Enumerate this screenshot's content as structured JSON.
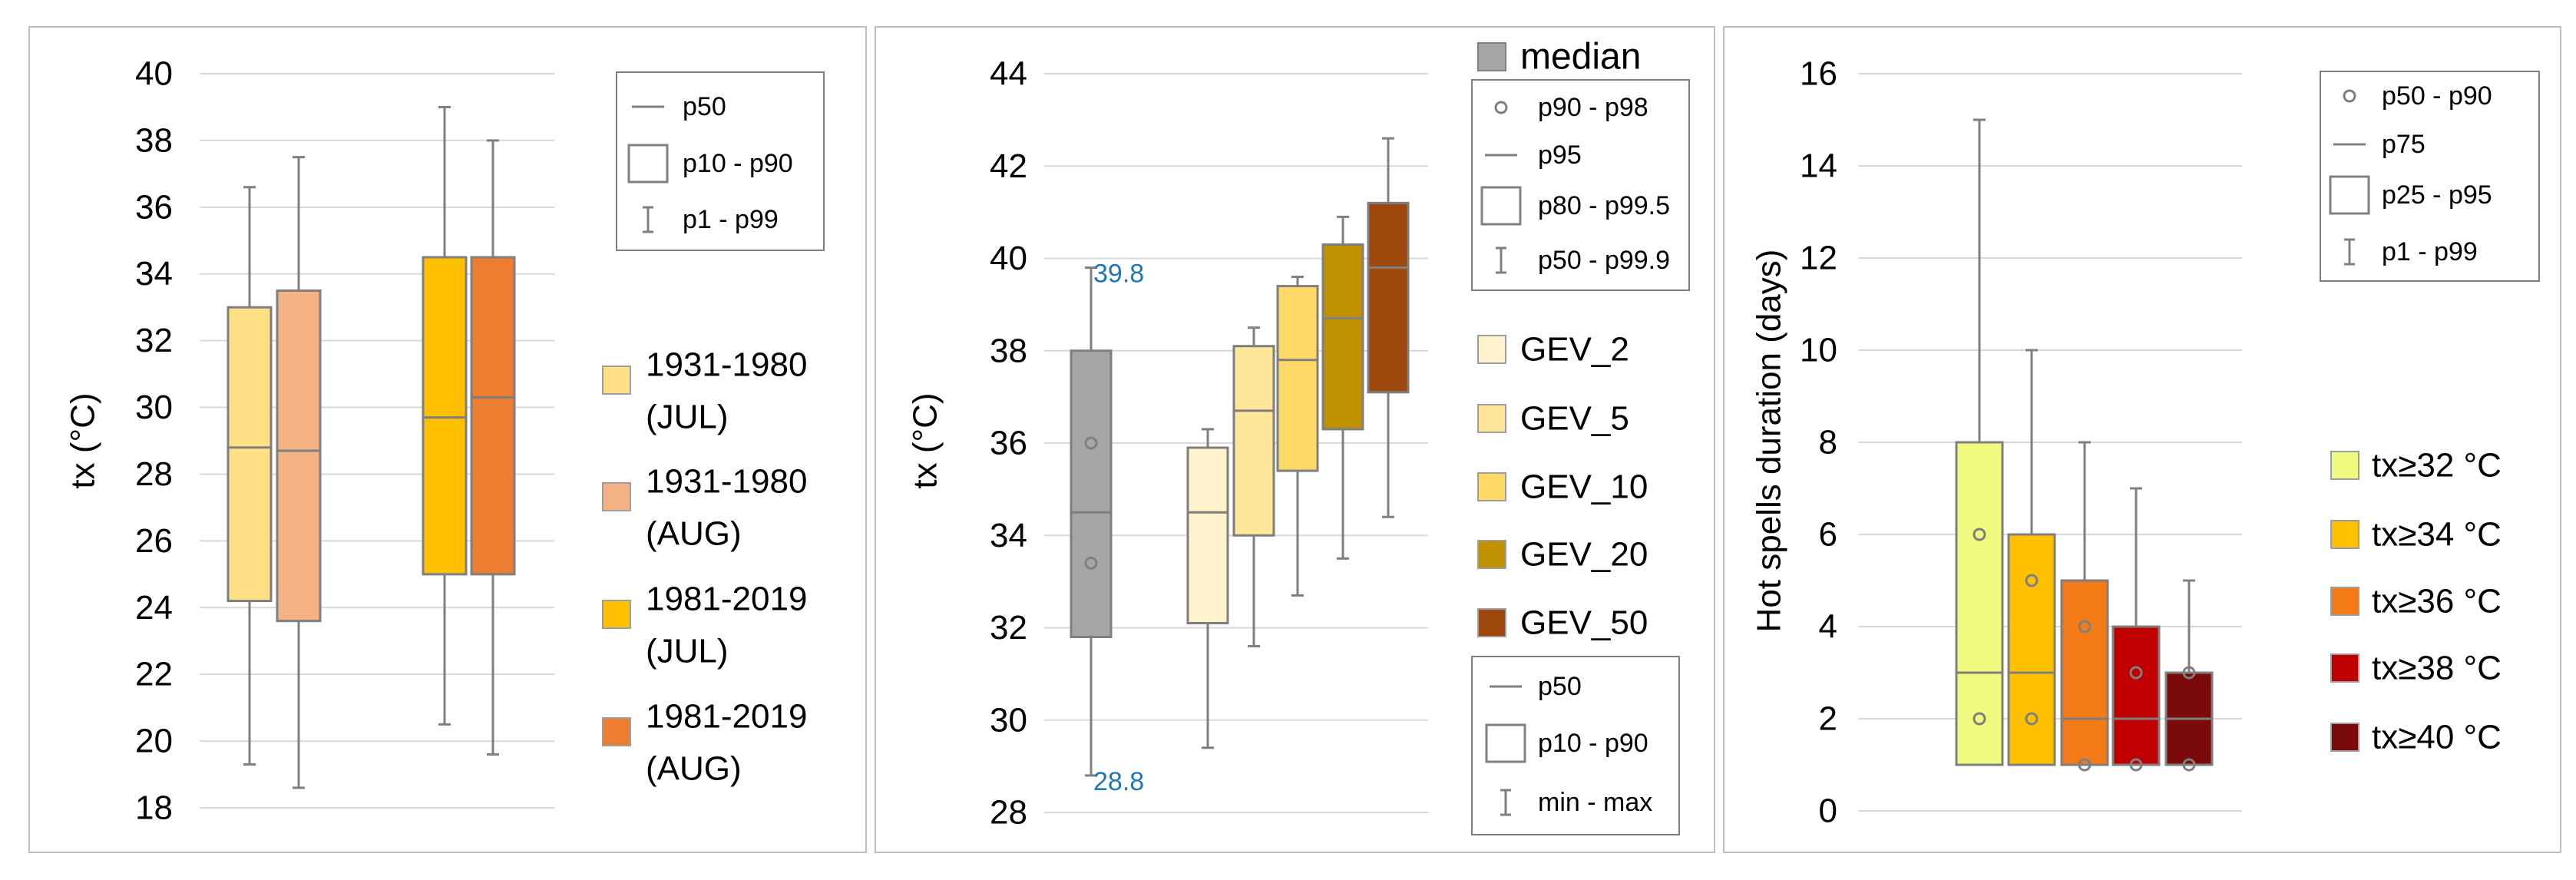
{
  "colors": {
    "axis_text": "#000000",
    "grid": "#d9d9d9",
    "whisker": "#7f7f7f",
    "panel_border": "#bfbfbf",
    "annotation": "#1f77b4"
  },
  "chart_data": [
    {
      "type": "box",
      "panel": 1,
      "ylabel": "tx (°C)",
      "ylim": [
        18,
        40
      ],
      "yticks": [
        18,
        20,
        22,
        24,
        26,
        28,
        30,
        32,
        34,
        36,
        38,
        40
      ],
      "legend_stat": [
        {
          "symbol": "line",
          "label": "p50"
        },
        {
          "symbol": "box",
          "label": "p10 - p90"
        },
        {
          "symbol": "whisker",
          "label": "p1 - p99"
        }
      ],
      "series": [
        {
          "name": "1931-1980 (JUL)",
          "line1": "1931-1980",
          "line2": "(JUL)",
          "color": "#ffe084",
          "p1": 19.3,
          "p10": 24.2,
          "p50": 28.8,
          "p90": 33.0,
          "p99": 36.6
        },
        {
          "name": "1931-1980 (AUG)",
          "line1": "1931-1980",
          "line2": "(AUG)",
          "color": "#f4b183",
          "p1": 18.6,
          "p10": 23.6,
          "p50": 28.7,
          "p90": 33.5,
          "p99": 37.5
        },
        {
          "name": "1981-2019 (JUL)",
          "line1": "1981-2019",
          "line2": "(JUL)",
          "color": "#ffc000",
          "p1": 20.5,
          "p10": 25.0,
          "p50": 29.7,
          "p90": 34.5,
          "p99": 39.0
        },
        {
          "name": "1981-2019 (AUG)",
          "line1": "1981-2019",
          "line2": "(AUG)",
          "color": "#ed7d31",
          "p1": 19.6,
          "p10": 25.0,
          "p50": 30.3,
          "p90": 34.5,
          "p99": 38.0
        }
      ]
    },
    {
      "type": "box",
      "panel": 2,
      "ylabel": "tx  (°C)",
      "ylim": [
        28,
        44
      ],
      "yticks": [
        28,
        30,
        32,
        34,
        36,
        38,
        40,
        42,
        44
      ],
      "median_box": {
        "name": "median",
        "color": "#a6a6a6",
        "min": 28.8,
        "p10": 31.8,
        "p50": 34.5,
        "p90": 38.0,
        "max": 39.8,
        "points": [
          36.0,
          33.4
        ]
      },
      "annotations": {
        "max": "39.8",
        "min": "28.8"
      },
      "legend_median": [
        {
          "symbol": "circle",
          "label": "p90 - p98"
        },
        {
          "symbol": "line",
          "label": "p95"
        },
        {
          "symbol": "box",
          "label": "p80 - p99.5"
        },
        {
          "symbol": "whisker",
          "label": "p50 - p99.9"
        }
      ],
      "legend_series_stat": [
        {
          "symbol": "line",
          "label": "p50"
        },
        {
          "symbol": "box",
          "label": "p10 - p90"
        },
        {
          "symbol": "whisker",
          "label": "min - max"
        }
      ],
      "series": [
        {
          "name": "GEV_2",
          "color": "#fff2cc",
          "min": 29.4,
          "p10": 32.1,
          "p50": 34.5,
          "p90": 35.9,
          "max": 36.3
        },
        {
          "name": "GEV_5",
          "color": "#ffe699",
          "min": 31.6,
          "p10": 34.0,
          "p50": 36.7,
          "p90": 38.1,
          "max": 38.5
        },
        {
          "name": "GEV_10",
          "color": "#ffd966",
          "min": 32.7,
          "p10": 35.4,
          "p50": 37.8,
          "p90": 39.4,
          "max": 39.6
        },
        {
          "name": "GEV_20",
          "color": "#bf9000",
          "min": 33.5,
          "p10": 36.3,
          "p50": 38.7,
          "p90": 40.3,
          "max": 40.9
        },
        {
          "name": "GEV_50",
          "color": "#9e480e",
          "min": 34.4,
          "p10": 37.1,
          "p50": 39.8,
          "p90": 41.2,
          "max": 42.6
        }
      ]
    },
    {
      "type": "box",
      "panel": 3,
      "ylabel": "Hot spells duration (days)",
      "ylim": [
        0,
        16
      ],
      "yticks": [
        0,
        2,
        4,
        6,
        8,
        10,
        12,
        14,
        16
      ],
      "legend_stat": [
        {
          "symbol": "circle",
          "label": "p50 - p90"
        },
        {
          "symbol": "line",
          "label": "p75"
        },
        {
          "symbol": "box",
          "label": "p25 - p95"
        },
        {
          "symbol": "whisker",
          "label": "p1 - p99"
        }
      ],
      "series": [
        {
          "name": "tx≥32 °C",
          "color": "#f0fa7e",
          "p1": 1,
          "p25": 1,
          "p75": 3,
          "p95": 8,
          "p99": 15,
          "points": [
            6,
            2
          ]
        },
        {
          "name": "tx≥34 °C",
          "color": "#ffc000",
          "p1": 1,
          "p25": 1,
          "p75": 3,
          "p95": 6,
          "p99": 10,
          "points": [
            5,
            2
          ]
        },
        {
          "name": "tx≥36 °C",
          "color": "#f47a17",
          "p1": 1,
          "p25": 1,
          "p75": 2,
          "p95": 5,
          "p99": 8,
          "points": [
            4,
            1
          ]
        },
        {
          "name": "tx≥38 °C",
          "color": "#c00000",
          "p1": 1,
          "p25": 1,
          "p75": 2,
          "p95": 4,
          "p99": 7,
          "points": [
            3,
            1
          ]
        },
        {
          "name": "tx≥40 °C",
          "color": "#7b0a0a",
          "p1": 1,
          "p25": 1,
          "p75": 2,
          "p95": 3,
          "p99": 5,
          "points": [
            3,
            1
          ]
        }
      ]
    }
  ]
}
